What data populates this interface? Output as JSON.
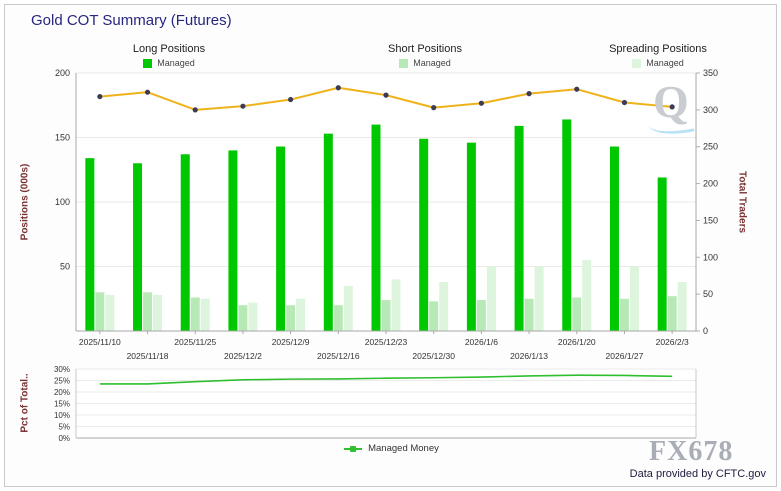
{
  "title": "Gold COT Summary (Futures)",
  "legends": [
    {
      "title": "Long Positions",
      "item": "Managed",
      "color": "#00c800"
    },
    {
      "title": "Short Positions",
      "item": "Managed",
      "color": "#b7e9b7"
    },
    {
      "title": "Spreading Positions",
      "item": "Managed",
      "color": "#ddf4dd"
    }
  ],
  "pct_legend": "Managed Money",
  "footer": {
    "watermark": "FX678",
    "q_mark": "Q",
    "source": "Data provided by CFTC.gov"
  },
  "chart_data": [
    {
      "type": "bar",
      "title": "Gold COT Summary (Futures)",
      "categories": [
        "2025/11/10",
        "2025/11/18",
        "2025/11/25",
        "2025/12/2",
        "2025/12/9",
        "2025/12/16",
        "2025/12/23",
        "2025/12/30",
        "2026/1/6",
        "2026/1/13",
        "2026/1/20",
        "2026/1/27",
        "2026/2/3"
      ],
      "series": [
        {
          "name": "Managed Long",
          "type": "bar",
          "color": "#00c800",
          "values": [
            134,
            130,
            137,
            140,
            143,
            153,
            160,
            149,
            146,
            159,
            164,
            143,
            119
          ]
        },
        {
          "name": "Managed Short",
          "type": "bar",
          "color": "#b7e9b7",
          "values": [
            30,
            30,
            26,
            20,
            20,
            20,
            24,
            23,
            24,
            25,
            26,
            25,
            27
          ]
        },
        {
          "name": "Managed Spreading",
          "type": "bar",
          "color": "#ddf4dd",
          "values": [
            28,
            28,
            25,
            22,
            25,
            35,
            40,
            38,
            50,
            50,
            55,
            50,
            38
          ]
        },
        {
          "name": "Total Traders",
          "type": "line",
          "color": "#efb31a",
          "marker_color": "#3c3c55",
          "values": [
            318,
            324,
            300,
            305,
            314,
            330,
            320,
            303,
            309,
            322,
            328,
            310,
            304
          ]
        }
      ],
      "ylabel_left": "Positions (000s)",
      "ylabel_right": "Total Traders",
      "ylim_left": [
        0,
        200
      ],
      "yticks_left": [
        200,
        150,
        100,
        50
      ],
      "ylim_right": [
        0,
        350
      ],
      "yticks_right": [
        350,
        300,
        250,
        200,
        150,
        100,
        50,
        0
      ],
      "grid": true,
      "legend_position": "top"
    },
    {
      "type": "line",
      "categories": [
        "2025/11/10",
        "2025/11/18",
        "2025/11/25",
        "2025/12/2",
        "2025/12/9",
        "2025/12/16",
        "2025/12/23",
        "2025/12/30",
        "2026/1/6",
        "2026/1/13",
        "2026/1/20",
        "2026/1/27",
        "2026/2/3"
      ],
      "series": [
        {
          "name": "Managed Money",
          "color": "#2fbf2f",
          "values": [
            23.5,
            23.5,
            24.5,
            25.3,
            25.6,
            25.7,
            26,
            26.2,
            26.5,
            27,
            27.3,
            27.2,
            26.8
          ]
        }
      ],
      "ylabel": "Pct of Total..",
      "ylim": [
        0,
        30
      ],
      "yticks": [
        "30%",
        "25%",
        "20%",
        "15%",
        "10%",
        "5%",
        "0%"
      ],
      "ytick_values": [
        30,
        25,
        20,
        15,
        10,
        5,
        0
      ],
      "grid": true,
      "legend_position": "bottom"
    }
  ]
}
